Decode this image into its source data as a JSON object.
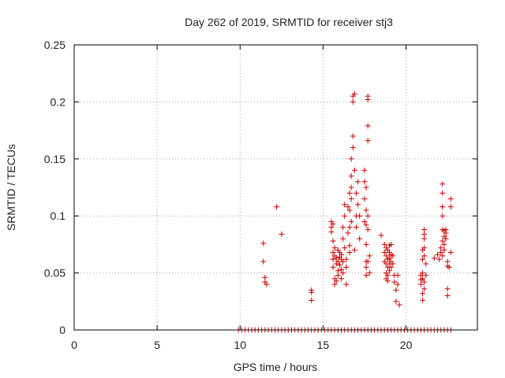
{
  "chart_data": {
    "type": "scatter",
    "title": "Day 262 of 2019, SRMTID for receiver stj3",
    "xlabel": "GPS time / hours",
    "ylabel": "SRMTID / TECUs",
    "xlim": [
      0,
      24.3
    ],
    "ylim": [
      0,
      0.25
    ],
    "xticks": [
      0,
      5,
      10,
      15,
      20
    ],
    "xtick_labels": [
      "0",
      "5",
      "10",
      "15",
      "20"
    ],
    "yticks": [
      0,
      0.05,
      0.1,
      0.15,
      0.2,
      0.25
    ],
    "ytick_labels": [
      "0",
      "0.05",
      "0.1",
      "0.15",
      "0.2",
      "0.25"
    ],
    "grid": true,
    "marker": "+",
    "color": "#cc0000",
    "series": [
      {
        "name": "SRMTID",
        "points": [
          [
            11.4,
            0.076
          ],
          [
            11.4,
            0.06
          ],
          [
            11.5,
            0.046
          ],
          [
            11.5,
            0.042
          ],
          [
            11.6,
            0.04
          ],
          [
            12.2,
            0.108
          ],
          [
            12.5,
            0.084
          ],
          [
            14.3,
            0.035
          ],
          [
            14.3,
            0.033
          ],
          [
            14.3,
            0.026
          ],
          [
            15.5,
            0.095
          ],
          [
            15.5,
            0.09
          ],
          [
            15.5,
            0.086
          ],
          [
            15.6,
            0.093
          ],
          [
            15.6,
            0.078
          ],
          [
            15.6,
            0.068
          ],
          [
            15.6,
            0.062
          ],
          [
            15.6,
            0.055
          ],
          [
            15.7,
            0.072
          ],
          [
            15.7,
            0.065
          ],
          [
            15.7,
            0.045
          ],
          [
            15.7,
            0.04
          ],
          [
            15.8,
            0.063
          ],
          [
            15.8,
            0.058
          ],
          [
            15.8,
            0.043
          ],
          [
            15.9,
            0.07
          ],
          [
            15.9,
            0.06
          ],
          [
            15.9,
            0.052
          ],
          [
            15.9,
            0.048
          ],
          [
            16.0,
            0.068
          ],
          [
            16.0,
            0.064
          ],
          [
            16.0,
            0.057
          ],
          [
            16.1,
            0.066
          ],
          [
            16.1,
            0.062
          ],
          [
            16.1,
            0.053
          ],
          [
            16.1,
            0.045
          ],
          [
            16.2,
            0.09
          ],
          [
            16.2,
            0.08
          ],
          [
            16.2,
            0.06
          ],
          [
            16.2,
            0.05
          ],
          [
            16.3,
            0.11
          ],
          [
            16.3,
            0.1
          ],
          [
            16.3,
            0.072
          ],
          [
            16.4,
            0.062
          ],
          [
            16.4,
            0.055
          ],
          [
            16.4,
            0.04
          ],
          [
            16.5,
            0.108
          ],
          [
            16.5,
            0.085
          ],
          [
            16.6,
            0.12
          ],
          [
            16.6,
            0.105
          ],
          [
            16.6,
            0.09
          ],
          [
            16.6,
            0.074
          ],
          [
            16.6,
            0.068
          ],
          [
            16.7,
            0.15
          ],
          [
            16.7,
            0.135
          ],
          [
            16.7,
            0.125
          ],
          [
            16.7,
            0.115
          ],
          [
            16.7,
            0.095
          ],
          [
            16.8,
            0.17
          ],
          [
            16.8,
            0.16
          ],
          [
            16.8,
            0.2
          ],
          [
            16.8,
            0.205
          ],
          [
            16.9,
            0.207
          ],
          [
            16.9,
            0.14
          ],
          [
            16.9,
            0.07
          ],
          [
            17.0,
            0.12
          ],
          [
            17.0,
            0.1
          ],
          [
            17.0,
            0.09
          ],
          [
            17.1,
            0.13
          ],
          [
            17.1,
            0.11
          ],
          [
            17.2,
            0.1
          ],
          [
            17.2,
            0.08
          ],
          [
            17.5,
            0.14
          ],
          [
            17.5,
            0.13
          ],
          [
            17.5,
            0.115
          ],
          [
            17.5,
            0.095
          ],
          [
            17.6,
            0.125
          ],
          [
            17.6,
            0.105
          ],
          [
            17.6,
            0.092
          ],
          [
            17.6,
            0.075
          ],
          [
            17.6,
            0.06
          ],
          [
            17.6,
            0.055
          ],
          [
            17.6,
            0.048
          ],
          [
            17.7,
            0.205
          ],
          [
            17.7,
            0.202
          ],
          [
            17.7,
            0.179
          ],
          [
            17.7,
            0.166
          ],
          [
            17.7,
            0.1
          ],
          [
            17.7,
            0.088
          ],
          [
            17.7,
            0.06
          ],
          [
            17.8,
            0.065
          ],
          [
            17.8,
            0.05
          ],
          [
            18.5,
            0.083
          ],
          [
            18.7,
            0.075
          ],
          [
            18.7,
            0.068
          ],
          [
            18.7,
            0.06
          ],
          [
            18.8,
            0.072
          ],
          [
            18.8,
            0.065
          ],
          [
            18.8,
            0.058
          ],
          [
            18.8,
            0.05
          ],
          [
            18.8,
            0.045
          ],
          [
            18.9,
            0.07
          ],
          [
            18.9,
            0.062
          ],
          [
            18.9,
            0.055
          ],
          [
            18.9,
            0.048
          ],
          [
            18.9,
            0.043
          ],
          [
            19.0,
            0.074
          ],
          [
            19.0,
            0.068
          ],
          [
            19.0,
            0.063
          ],
          [
            19.0,
            0.058
          ],
          [
            19.0,
            0.052
          ],
          [
            19.1,
            0.075
          ],
          [
            19.1,
            0.066
          ],
          [
            19.1,
            0.06
          ],
          [
            19.1,
            0.055
          ],
          [
            19.2,
            0.065
          ],
          [
            19.2,
            0.058
          ],
          [
            19.3,
            0.048
          ],
          [
            19.3,
            0.042
          ],
          [
            19.4,
            0.035
          ],
          [
            19.4,
            0.025
          ],
          [
            19.5,
            0.048
          ],
          [
            19.5,
            0.04
          ],
          [
            19.6,
            0.022
          ],
          [
            20.9,
            0.048
          ],
          [
            20.9,
            0.044
          ],
          [
            20.9,
            0.04
          ],
          [
            21.0,
            0.07
          ],
          [
            21.0,
            0.062
          ],
          [
            21.0,
            0.05
          ],
          [
            21.0,
            0.045
          ],
          [
            21.0,
            0.032
          ],
          [
            21.0,
            0.026
          ],
          [
            21.1,
            0.088
          ],
          [
            21.1,
            0.084
          ],
          [
            21.1,
            0.08
          ],
          [
            21.1,
            0.072
          ],
          [
            21.1,
            0.065
          ],
          [
            21.1,
            0.042
          ],
          [
            21.1,
            0.036
          ],
          [
            21.2,
            0.058
          ],
          [
            21.2,
            0.048
          ],
          [
            21.7,
            0.063
          ],
          [
            21.9,
            0.066
          ],
          [
            22.0,
            0.062
          ],
          [
            22.1,
            0.072
          ],
          [
            22.1,
            0.068
          ],
          [
            22.2,
            0.128
          ],
          [
            22.2,
            0.12
          ],
          [
            22.2,
            0.108
          ],
          [
            22.2,
            0.1
          ],
          [
            22.2,
            0.088
          ],
          [
            22.2,
            0.078
          ],
          [
            22.2,
            0.065
          ],
          [
            22.3,
            0.087
          ],
          [
            22.3,
            0.082
          ],
          [
            22.3,
            0.075
          ],
          [
            22.3,
            0.07
          ],
          [
            22.4,
            0.088
          ],
          [
            22.4,
            0.085
          ],
          [
            22.4,
            0.08
          ],
          [
            22.5,
            0.06
          ],
          [
            22.5,
            0.056
          ],
          [
            22.5,
            0.036
          ],
          [
            22.5,
            0.03
          ],
          [
            22.6,
            0.055
          ],
          [
            22.7,
            0.115
          ],
          [
            22.7,
            0.108
          ],
          [
            22.7,
            0.068
          ]
        ]
      }
    ],
    "baseline_points_x": [
      9.9,
      10.1,
      10.3,
      10.5,
      10.7,
      10.9,
      11.1,
      11.3,
      11.5,
      11.7,
      11.9,
      12.1,
      12.3,
      12.5,
      12.7,
      12.9,
      13.1,
      13.3,
      13.5,
      13.7,
      13.9,
      14.1,
      14.3,
      14.5,
      14.7,
      14.9,
      15.1,
      15.3,
      15.5,
      15.7,
      15.9,
      16.1,
      16.3,
      16.5,
      16.7,
      16.9,
      17.1,
      17.3,
      17.5,
      17.7,
      17.9,
      18.1,
      18.3,
      18.5,
      18.7,
      18.9,
      19.1,
      19.3,
      19.5,
      19.7,
      19.9,
      20.1,
      20.3,
      20.5,
      20.7,
      20.9,
      21.1,
      21.3,
      21.5,
      21.7,
      21.9,
      22.1,
      22.3,
      22.5,
      22.7
    ]
  }
}
